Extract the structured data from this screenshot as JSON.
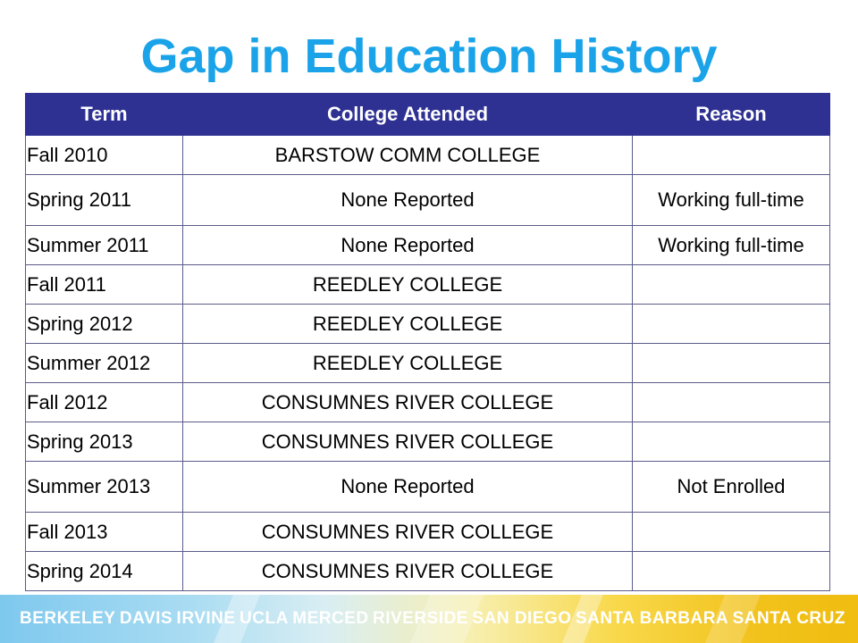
{
  "title": "Gap in Education History",
  "table": {
    "headers": [
      "Term",
      "College Attended",
      "Reason"
    ],
    "rows": [
      {
        "term": "Fall 2010",
        "college": "BARSTOW COMM COLLEGE",
        "reason": ""
      },
      {
        "term": "Spring 2011",
        "college": "None Reported",
        "reason": "Working full-time"
      },
      {
        "term": "Summer 2011",
        "college": "None Reported",
        "reason": "Working full-time"
      },
      {
        "term": "Fall 2011",
        "college": "REEDLEY COLLEGE",
        "reason": ""
      },
      {
        "term": "Spring 2012",
        "college": "REEDLEY COLLEGE",
        "reason": ""
      },
      {
        "term": "Summer 2012",
        "college": "REEDLEY COLLEGE",
        "reason": ""
      },
      {
        "term": "Fall 2012",
        "college": "CONSUMNES RIVER COLLEGE",
        "reason": ""
      },
      {
        "term": "Spring 2013",
        "college": "CONSUMNES RIVER COLLEGE",
        "reason": ""
      },
      {
        "term": "Summer 2013",
        "college": "None Reported",
        "reason": "Not Enrolled"
      },
      {
        "term": "Fall 2013",
        "college": "CONSUMNES RIVER COLLEGE",
        "reason": ""
      },
      {
        "term": "Spring 2014",
        "college": "CONSUMNES RIVER COLLEGE",
        "reason": ""
      }
    ]
  },
  "banner": {
    "campuses": [
      "BERKELEY",
      "DAVIS",
      "IRVINE",
      "UCLA",
      "MERCED",
      "RIVERSIDE",
      "SAN DIEGO",
      "SANTA BARBARA",
      "SANTA CRUZ"
    ]
  },
  "colors": {
    "title": "#1aa3e8",
    "header_bg": "#2e3192",
    "header_text": "#ffffff"
  }
}
